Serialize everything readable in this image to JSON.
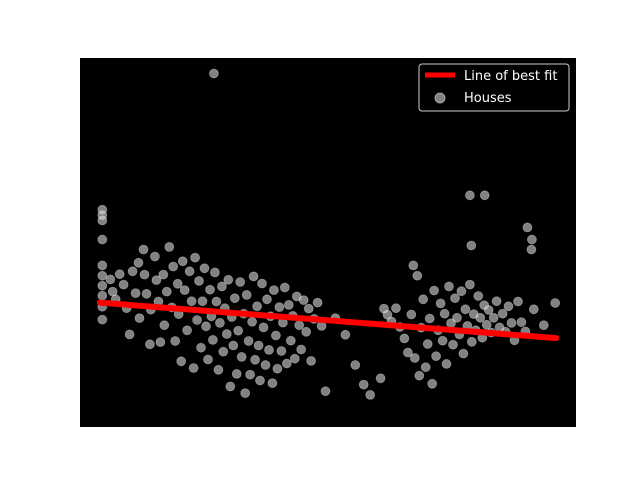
{
  "chart_data": {
    "type": "scatter",
    "title": "",
    "xlabel": "",
    "ylabel": "",
    "xlim": [
      0,
      1
    ],
    "ylim": [
      0,
      1
    ],
    "axes_visible": false,
    "legend_placement": "top-right",
    "colors": {
      "plot_background": "#000000",
      "figure_background": "#ffffff",
      "points": "#d9d9d9",
      "fit_line": "#ff0000"
    },
    "series": [
      {
        "name": "Houses",
        "kind": "scatter",
        "alpha": 0.6,
        "points": [
          [
            0.27,
            0.958
          ],
          [
            0.786,
            0.628
          ],
          [
            0.816,
            0.628
          ],
          [
            0.902,
            0.541
          ],
          [
            0.911,
            0.508
          ],
          [
            0.91,
            0.481
          ],
          [
            0.789,
            0.492
          ],
          [
            0.672,
            0.438
          ],
          [
            0.045,
            0.589
          ],
          [
            0.045,
            0.574
          ],
          [
            0.045,
            0.56
          ],
          [
            0.045,
            0.508
          ],
          [
            0.045,
            0.438
          ],
          [
            0.045,
            0.41
          ],
          [
            0.045,
            0.383
          ],
          [
            0.045,
            0.356
          ],
          [
            0.045,
            0.326
          ],
          [
            0.045,
            0.291
          ],
          [
            0.061,
            0.4
          ],
          [
            0.066,
            0.367
          ],
          [
            0.072,
            0.346
          ],
          [
            0.08,
            0.414
          ],
          [
            0.088,
            0.386
          ],
          [
            0.094,
            0.322
          ],
          [
            0.1,
            0.251
          ],
          [
            0.106,
            0.422
          ],
          [
            0.112,
            0.363
          ],
          [
            0.118,
            0.445
          ],
          [
            0.12,
            0.295
          ],
          [
            0.128,
            0.481
          ],
          [
            0.13,
            0.413
          ],
          [
            0.134,
            0.361
          ],
          [
            0.141,
            0.224
          ],
          [
            0.143,
            0.318
          ],
          [
            0.151,
            0.462
          ],
          [
            0.154,
            0.398
          ],
          [
            0.158,
            0.34
          ],
          [
            0.162,
            0.23
          ],
          [
            0.168,
            0.413
          ],
          [
            0.17,
            0.276
          ],
          [
            0.175,
            0.367
          ],
          [
            0.18,
            0.488
          ],
          [
            0.185,
            0.324
          ],
          [
            0.188,
            0.435
          ],
          [
            0.192,
            0.233
          ],
          [
            0.197,
            0.388
          ],
          [
            0.199,
            0.306
          ],
          [
            0.204,
            0.178
          ],
          [
            0.207,
            0.449
          ],
          [
            0.211,
            0.371
          ],
          [
            0.216,
            0.262
          ],
          [
            0.221,
            0.422
          ],
          [
            0.225,
            0.341
          ],
          [
            0.229,
            0.16
          ],
          [
            0.232,
            0.459
          ],
          [
            0.236,
            0.29
          ],
          [
            0.24,
            0.396
          ],
          [
            0.244,
            0.215
          ],
          [
            0.247,
            0.341
          ],
          [
            0.251,
            0.43
          ],
          [
            0.254,
            0.273
          ],
          [
            0.258,
            0.183
          ],
          [
            0.262,
            0.372
          ],
          [
            0.265,
            0.3
          ],
          [
            0.268,
            0.236
          ],
          [
            0.272,
            0.419
          ],
          [
            0.275,
            0.34
          ],
          [
            0.279,
            0.155
          ],
          [
            0.282,
            0.282
          ],
          [
            0.286,
            0.381
          ],
          [
            0.289,
            0.204
          ],
          [
            0.292,
            0.322
          ],
          [
            0.296,
            0.252
          ],
          [
            0.299,
            0.399
          ],
          [
            0.303,
            0.11
          ],
          [
            0.306,
            0.298
          ],
          [
            0.309,
            0.221
          ],
          [
            0.312,
            0.349
          ],
          [
            0.316,
            0.144
          ],
          [
            0.319,
            0.261
          ],
          [
            0.323,
            0.393
          ],
          [
            0.326,
            0.19
          ],
          [
            0.33,
            0.307
          ],
          [
            0.333,
            0.092
          ],
          [
            0.336,
            0.358
          ],
          [
            0.34,
            0.233
          ],
          [
            0.343,
            0.142
          ],
          [
            0.347,
            0.285
          ],
          [
            0.35,
            0.408
          ],
          [
            0.353,
            0.182
          ],
          [
            0.357,
            0.327
          ],
          [
            0.36,
            0.221
          ],
          [
            0.363,
            0.126
          ],
          [
            0.367,
            0.389
          ],
          [
            0.37,
            0.27
          ],
          [
            0.374,
            0.168
          ],
          [
            0.377,
            0.346
          ],
          [
            0.381,
            0.209
          ],
          [
            0.384,
            0.3
          ],
          [
            0.388,
            0.119
          ],
          [
            0.391,
            0.371
          ],
          [
            0.395,
            0.248
          ],
          [
            0.398,
            0.158
          ],
          [
            0.402,
            0.325
          ],
          [
            0.406,
            0.206
          ],
          [
            0.409,
            0.283
          ],
          [
            0.413,
            0.378
          ],
          [
            0.417,
            0.172
          ],
          [
            0.421,
            0.331
          ],
          [
            0.425,
            0.234
          ],
          [
            0.429,
            0.301
          ],
          [
            0.433,
            0.185
          ],
          [
            0.437,
            0.354
          ],
          [
            0.442,
            0.276
          ],
          [
            0.446,
            0.21
          ],
          [
            0.451,
            0.344
          ],
          [
            0.456,
            0.258
          ],
          [
            0.461,
            0.321
          ],
          [
            0.466,
            0.179
          ],
          [
            0.472,
            0.293
          ],
          [
            0.479,
            0.337
          ],
          [
            0.487,
            0.274
          ],
          [
            0.495,
            0.097
          ],
          [
            0.515,
            0.295
          ],
          [
            0.535,
            0.25
          ],
          [
            0.555,
            0.168
          ],
          [
            0.572,
            0.115
          ],
          [
            0.585,
            0.087
          ],
          [
            0.606,
            0.132
          ],
          [
            0.613,
            0.321
          ],
          [
            0.62,
            0.304
          ],
          [
            0.628,
            0.286
          ],
          [
            0.637,
            0.322
          ],
          [
            0.645,
            0.271
          ],
          [
            0.654,
            0.24
          ],
          [
            0.661,
            0.202
          ],
          [
            0.668,
            0.305
          ],
          [
            0.675,
            0.187
          ],
          [
            0.68,
            0.41
          ],
          [
            0.684,
            0.139
          ],
          [
            0.688,
            0.269
          ],
          [
            0.692,
            0.346
          ],
          [
            0.697,
            0.162
          ],
          [
            0.701,
            0.225
          ],
          [
            0.705,
            0.294
          ],
          [
            0.71,
            0.117
          ],
          [
            0.714,
            0.37
          ],
          [
            0.718,
            0.192
          ],
          [
            0.722,
            0.262
          ],
          [
            0.727,
            0.335
          ],
          [
            0.731,
            0.234
          ],
          [
            0.735,
            0.307
          ],
          [
            0.739,
            0.171
          ],
          [
            0.744,
            0.381
          ],
          [
            0.748,
            0.281
          ],
          [
            0.752,
            0.223
          ],
          [
            0.756,
            0.349
          ],
          [
            0.76,
            0.296
          ],
          [
            0.765,
            0.251
          ],
          [
            0.769,
            0.368
          ],
          [
            0.773,
            0.199
          ],
          [
            0.777,
            0.319
          ],
          [
            0.781,
            0.274
          ],
          [
            0.786,
            0.386
          ],
          [
            0.79,
            0.231
          ],
          [
            0.794,
            0.306
          ],
          [
            0.798,
            0.262
          ],
          [
            0.803,
            0.355
          ],
          [
            0.807,
            0.296
          ],
          [
            0.811,
            0.242
          ],
          [
            0.815,
            0.33
          ],
          [
            0.82,
            0.277
          ],
          [
            0.824,
            0.317
          ],
          [
            0.829,
            0.256
          ],
          [
            0.834,
            0.296
          ],
          [
            0.84,
            0.341
          ],
          [
            0.846,
            0.27
          ],
          [
            0.852,
            0.307
          ],
          [
            0.858,
            0.258
          ],
          [
            0.864,
            0.327
          ],
          [
            0.87,
            0.282
          ],
          [
            0.876,
            0.235
          ],
          [
            0.883,
            0.34
          ],
          [
            0.89,
            0.284
          ],
          [
            0.898,
            0.259
          ],
          [
            0.915,
            0.319
          ],
          [
            0.935,
            0.276
          ],
          [
            0.958,
            0.336
          ]
        ]
      },
      {
        "name": "Line of best fit",
        "kind": "line",
        "points": [
          [
            0.04,
            0.337
          ],
          [
            0.96,
            0.241
          ]
        ]
      }
    ]
  }
}
